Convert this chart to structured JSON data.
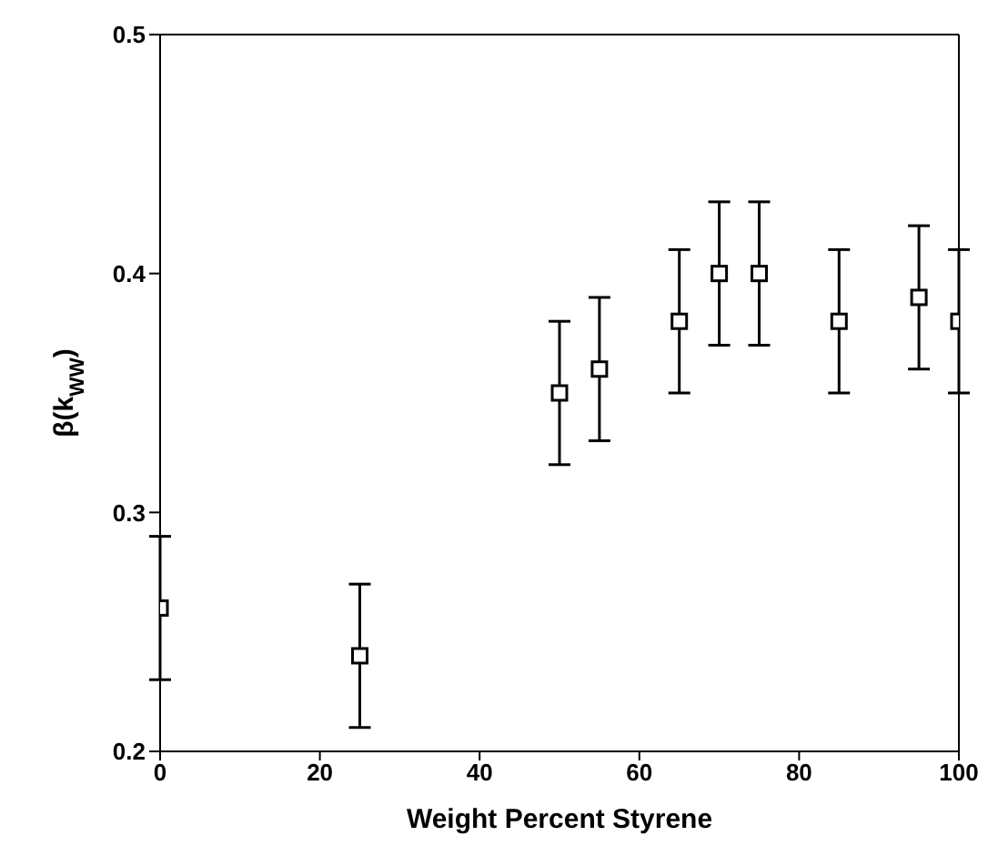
{
  "chart_data": {
    "type": "scatter",
    "xlabel": "Weight Percent Styrene",
    "ylabel": "β(k$_{WW}$)",
    "x": [
      0,
      25,
      50,
      55,
      65,
      70,
      75,
      85,
      95,
      100
    ],
    "values": [
      0.26,
      0.24,
      0.35,
      0.36,
      0.38,
      0.4,
      0.4,
      0.38,
      0.39,
      0.38
    ],
    "errors": [
      0.03,
      0.03,
      0.03,
      0.03,
      0.03,
      0.03,
      0.03,
      0.03,
      0.03,
      0.03
    ],
    "color": "#000000",
    "marker": "square",
    "xlim": [
      0,
      100
    ],
    "xticks": [
      0,
      20,
      40,
      60,
      80,
      100
    ],
    "ylim": [
      0.2,
      0.5
    ],
    "yticks": [
      0.2,
      0.3,
      0.4,
      0.5
    ],
    "grid": false,
    "legend": false
  }
}
